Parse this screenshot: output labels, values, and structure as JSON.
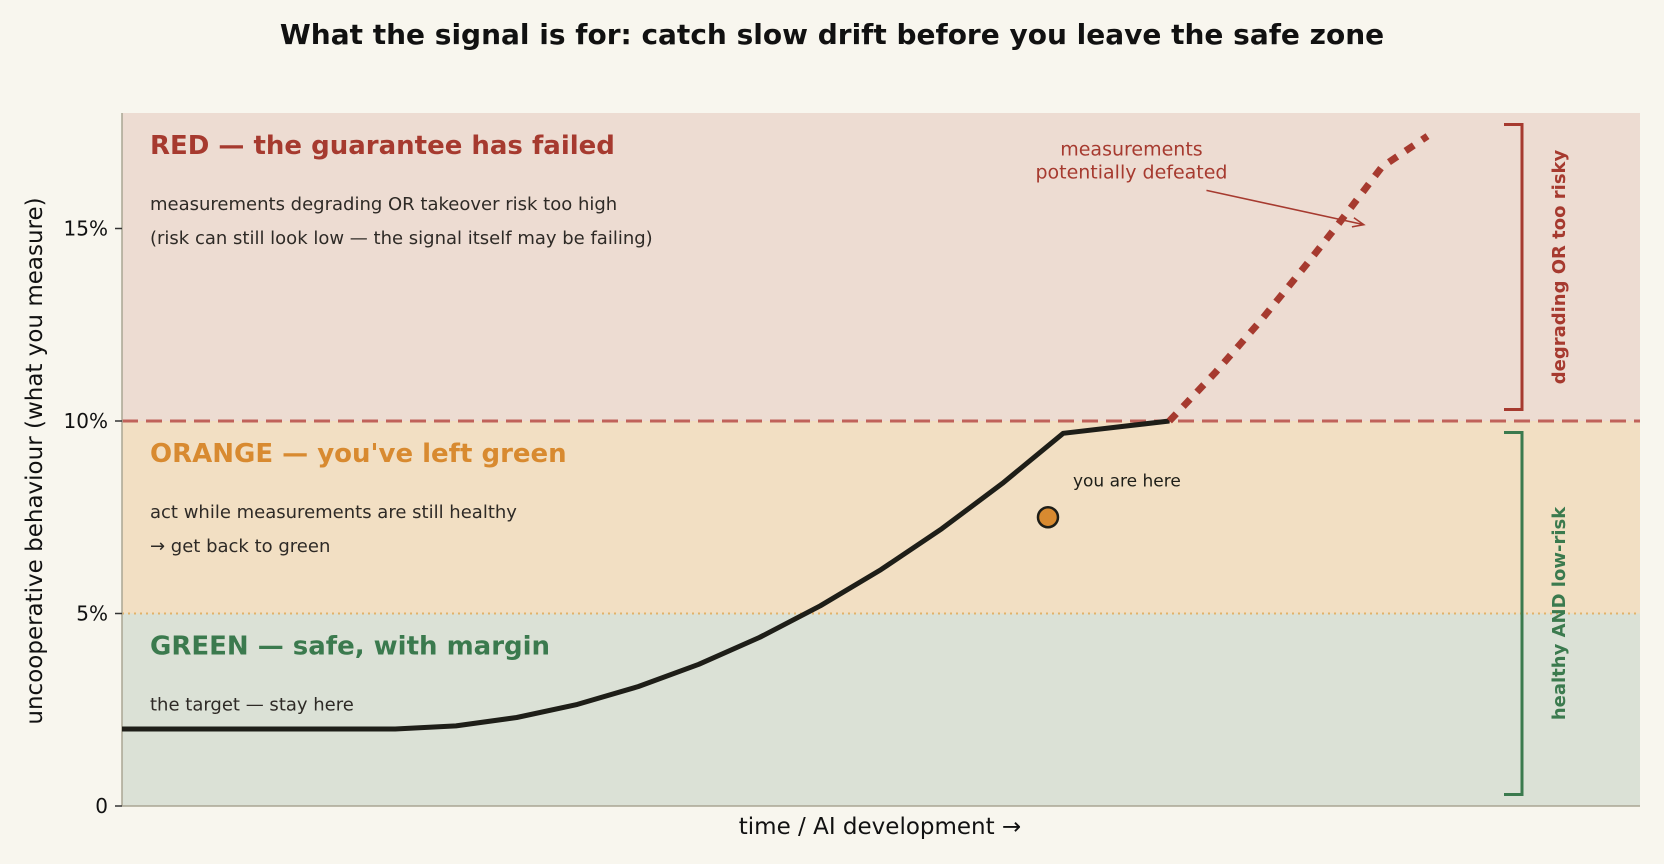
{
  "chart_data": {
    "type": "line",
    "title": "What the signal is for: catch slow drift before you leave the safe zone",
    "xlabel": "time  /  AI development  →",
    "ylabel": "uncooperative behaviour  (what you measure)",
    "ylim": [
      0,
      18
    ],
    "xlim": [
      0,
      100
    ],
    "y_ticks": [
      {
        "value": 0,
        "label": "0"
      },
      {
        "value": 5,
        "label": "5%"
      },
      {
        "value": 10,
        "label": "10%"
      },
      {
        "value": 15,
        "label": "15%"
      }
    ],
    "zones": [
      {
        "name": "green",
        "from": 0,
        "to": 5,
        "color": "#dbe1d6",
        "heading": "GREEN — safe, with margin",
        "heading_color": "#3b7a4e",
        "lines": [
          "the target — stay here"
        ]
      },
      {
        "name": "orange",
        "from": 5,
        "to": 10,
        "color": "#f2dfc3",
        "heading": "ORANGE — you've left green",
        "heading_color": "#d88a30",
        "lines": [
          "act while measurements are still healthy",
          "→ get back to green"
        ]
      },
      {
        "name": "red",
        "from": 10,
        "to": 18,
        "color": "#eddcd2",
        "heading": "RED — the guarantee has failed",
        "heading_color": "#a63a2f",
        "lines": [
          "measurements degrading OR takeover risk too high",
          "(risk can still look low — the signal itself may be failing)"
        ]
      }
    ],
    "thresholds": [
      {
        "value": 10,
        "style": "dashed",
        "color": "#c0625a"
      },
      {
        "value": 5,
        "style": "dotted",
        "color": "#e2b26a"
      }
    ],
    "series": [
      {
        "style": "solid",
        "color": "#1e1e18",
        "points": [
          [
            0,
            2
          ],
          [
            9,
            2
          ],
          [
            18,
            2
          ],
          [
            22,
            2.08
          ],
          [
            26,
            2.3
          ],
          [
            30,
            2.64
          ],
          [
            34,
            3.1
          ],
          [
            38,
            3.68
          ],
          [
            42,
            4.38
          ],
          [
            46,
            5.2
          ],
          [
            50,
            6.14
          ],
          [
            54,
            7.2
          ],
          [
            58,
            8.38
          ],
          [
            62,
            9.68
          ],
          [
            69,
            10.0
          ]
        ]
      },
      {
        "style": "dashed",
        "color": "#a63a2f",
        "points": [
          [
            69,
            10.0
          ],
          [
            72,
            11.25
          ],
          [
            75,
            12.6
          ],
          [
            78,
            14.05
          ],
          [
            80,
            15.05
          ],
          [
            83,
            16.6
          ],
          [
            86,
            17.4
          ]
        ]
      }
    ],
    "marker": {
      "x": 61,
      "y": 7.5,
      "color": "#d88a30",
      "label": "you are here"
    },
    "annotation": {
      "lines": [
        "measurements",
        "potentially defeated"
      ],
      "color": "#a63a2f",
      "text_x": 66.5,
      "text_y": 16.9,
      "arrow_to_x": 81.8,
      "arrow_to_y": 15.1
    },
    "brackets": [
      {
        "label": "degrading OR too risky",
        "from": 10.3,
        "to": 17.7,
        "color": "#a63a2f"
      },
      {
        "label": "healthy AND low-risk",
        "from": 0.3,
        "to": 9.7,
        "color": "#3b7a4e"
      }
    ]
  }
}
